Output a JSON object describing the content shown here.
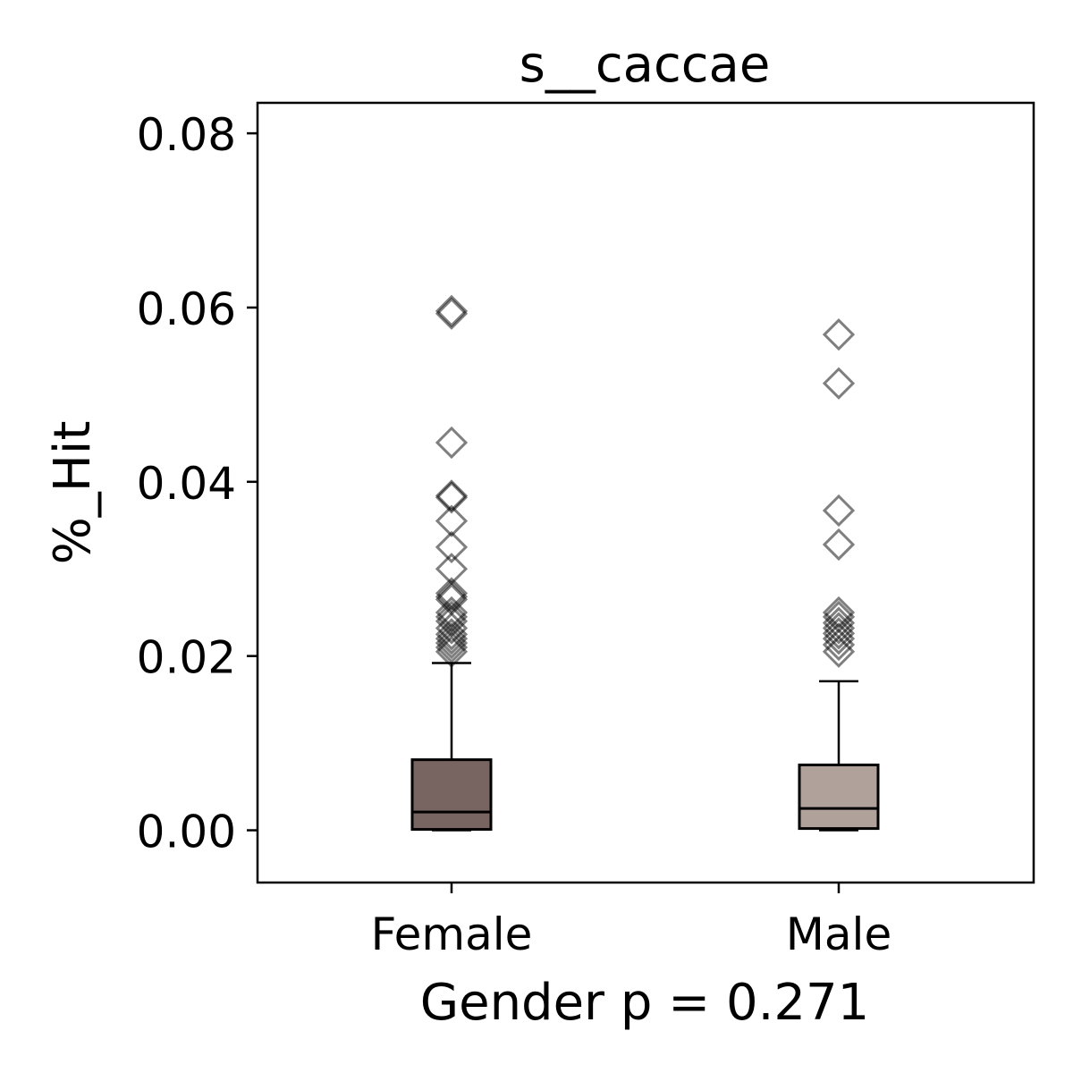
{
  "chart_data": {
    "type": "box",
    "title": "s__caccae",
    "xlabel": "Gender p = 0.271",
    "ylabel": "%_Hit",
    "categories": [
      "Female",
      "Male"
    ],
    "ylim": [
      -0.006,
      0.0835
    ],
    "yticks": [
      0.0,
      0.02,
      0.04,
      0.06,
      0.08
    ],
    "ytick_labels": [
      "0.00",
      "0.02",
      "0.04",
      "0.06",
      "0.08"
    ],
    "grid": false,
    "series": [
      {
        "category": "Female",
        "color": "#786461",
        "min": 0.0,
        "q1": 0.0001,
        "median": 0.0021,
        "q3": 0.0081,
        "max": 0.0192,
        "outliers": [
          0.0596,
          0.0593,
          0.0445,
          0.0384,
          0.0382,
          0.0355,
          0.0325,
          0.03,
          0.0272,
          0.0268,
          0.0265,
          0.025,
          0.0245,
          0.024,
          0.0232,
          0.0225,
          0.022,
          0.0215,
          0.021,
          0.0205
        ]
      },
      {
        "category": "Male",
        "color": "#b0a29a",
        "min": 0.0,
        "q1": 0.0002,
        "median": 0.0025,
        "q3": 0.0075,
        "max": 0.0171,
        "outliers": [
          0.0569,
          0.0513,
          0.0367,
          0.0328,
          0.025,
          0.0245,
          0.0238,
          0.0232,
          0.0226,
          0.022,
          0.0213,
          0.0205
        ]
      }
    ]
  }
}
